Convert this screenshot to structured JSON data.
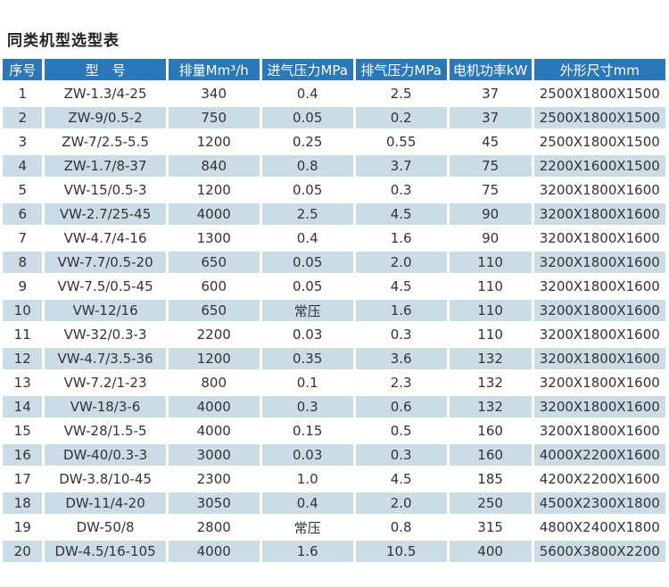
{
  "page_title": "同类机型选型表",
  "colors": {
    "header_bg": "#2b78b9",
    "header_text": "#ffffff",
    "row_shaded_bg": "#ccdce6",
    "row_plain_bg": "#ffffff",
    "body_text": "#333333"
  },
  "chart_data": {
    "type": "table",
    "title": "同类机型选型表",
    "columns": [
      "序号",
      "型　号",
      "排量Mm³/h",
      "进气压力MPa",
      "排气压力MPa",
      "电机功率kW",
      "外形尺寸mm"
    ],
    "rows": [
      [
        "1",
        "ZW-1.3/4-25",
        "340",
        "0.4",
        "2.5",
        "37",
        "2500X1800X1500"
      ],
      [
        "2",
        "ZW-9/0.5-2",
        "750",
        "0.05",
        "0.2",
        "37",
        "2500X1800X1500"
      ],
      [
        "3",
        "ZW-7/2.5-5.5",
        "1200",
        "0.25",
        "0.55",
        "45",
        "2500X1800X1500"
      ],
      [
        "4",
        "ZW-1.7/8-37",
        "840",
        "0.8",
        "3.7",
        "75",
        "2200X1600X1500"
      ],
      [
        "5",
        "VW-15/0.5-3",
        "1200",
        "0.05",
        "0.3",
        "75",
        "3200X1800X1600"
      ],
      [
        "6",
        "VW-2.7/25-45",
        "4000",
        "2.5",
        "4.5",
        "90",
        "3200X1800X1600"
      ],
      [
        "7",
        "VW-4.7/4-16",
        "1300",
        "0.4",
        "1.6",
        "90",
        "3200X1800X1600"
      ],
      [
        "8",
        "VW-7.7/0.5-20",
        "650",
        "0.05",
        "2.0",
        "110",
        "3200X1800X1600"
      ],
      [
        "9",
        "VW-7.5/0.5-45",
        "600",
        "0.05",
        "4.5",
        "110",
        "3200X1800X1600"
      ],
      [
        "10",
        "VW-12/16",
        "650",
        "常压",
        "1.6",
        "110",
        "3200X1800X1600"
      ],
      [
        "11",
        "VW-32/0.3-3",
        "2200",
        "0.03",
        "0.3",
        "110",
        "3200X1800X1600"
      ],
      [
        "12",
        "VW-4.7/3.5-36",
        "1200",
        "0.35",
        "3.6",
        "132",
        "3200X1800X1600"
      ],
      [
        "13",
        "VW-7.2/1-23",
        "800",
        "0.1",
        "2.3",
        "132",
        "3200X1800X1600"
      ],
      [
        "14",
        "VW-18/3-6",
        "4000",
        "0.3",
        "0.6",
        "132",
        "3200X1800X1600"
      ],
      [
        "15",
        "VW-28/1.5-5",
        "4000",
        "0.15",
        "0.5",
        "160",
        "3200X1800X1600"
      ],
      [
        "16",
        "DW-40/0.3-3",
        "3000",
        "0.03",
        "0.3",
        "160",
        "4000X2200X1600"
      ],
      [
        "17",
        "DW-3.8/10-45",
        "2300",
        "1.0",
        "4.5",
        "185",
        "4200X2200X1600"
      ],
      [
        "18",
        "DW-11/4-20",
        "3050",
        "0.4",
        "2.0",
        "250",
        "4500X2300X1800"
      ],
      [
        "19",
        "DW-50/8",
        "2800",
        "常压",
        "0.8",
        "315",
        "4800X2400X1800"
      ],
      [
        "20",
        "DW-4.5/16-105",
        "4000",
        "1.6",
        "10.5",
        "400",
        "5600X3800X2200"
      ]
    ]
  }
}
